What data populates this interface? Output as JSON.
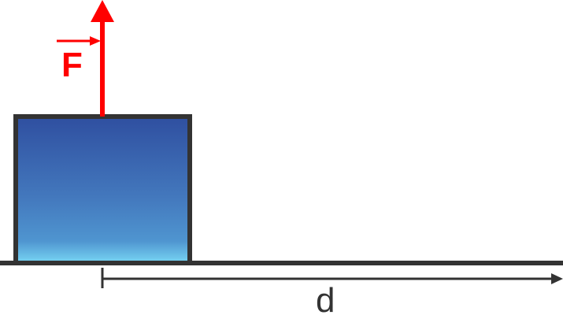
{
  "diagram": {
    "force_label": "F",
    "displacement_label": "d",
    "colors": {
      "force": "#ff0000",
      "block_top": "#3050a0",
      "block_mid": "#4a86c8",
      "block_bottom": "#6fd2f0",
      "block_border": "#333333",
      "ground": "#333333",
      "text": "#333333"
    }
  }
}
